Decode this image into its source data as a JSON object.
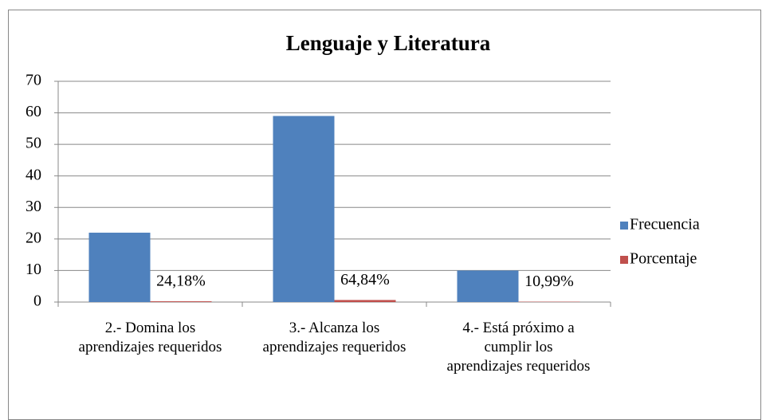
{
  "chart_data": {
    "type": "bar",
    "title": "Lenguaje y Literatura",
    "categories": [
      "2.- Domina los aprendizajes requeridos",
      "3.- Alcanza los aprendizajes requeridos",
      "4.- Está próximo a cumplir los aprendizajes requeridos"
    ],
    "series": [
      {
        "name": "Frecuencia",
        "color": "#4f81bd",
        "values": [
          22,
          59,
          10
        ]
      },
      {
        "name": "Porcentaje",
        "color": "#c0504d",
        "values": [
          0.2418,
          0.6484,
          0.1099
        ],
        "value_labels": [
          "24,18%",
          "64,84%",
          "10,99%"
        ]
      }
    ],
    "ylim": [
      0,
      70
    ],
    "yticks": [
      0,
      10,
      20,
      30,
      40,
      50,
      60,
      70
    ],
    "grid": true,
    "legend": "right"
  }
}
